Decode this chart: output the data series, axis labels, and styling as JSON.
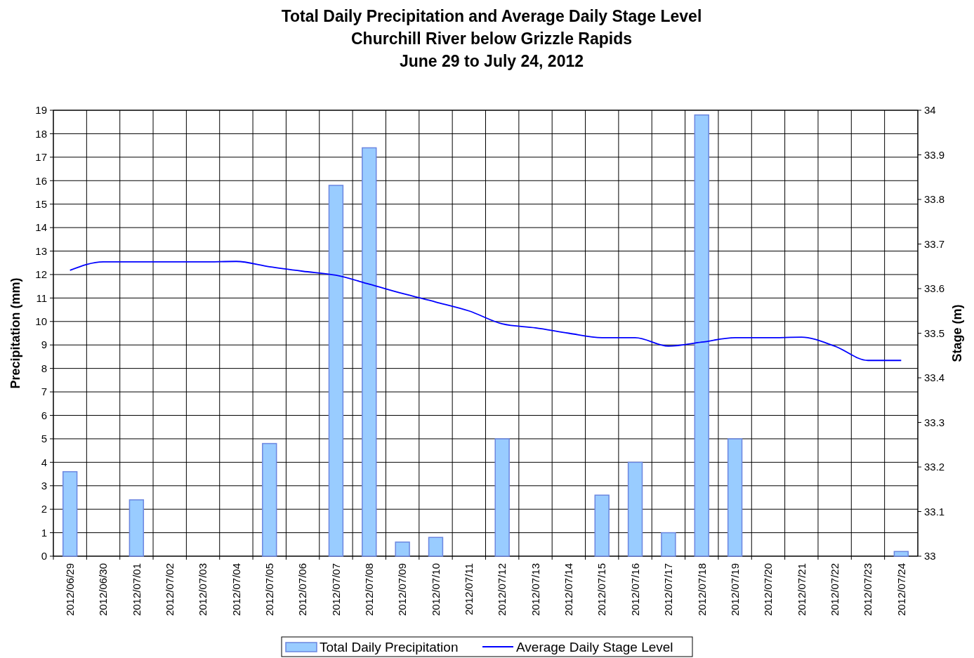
{
  "chart_data": {
    "type": "bar",
    "title": "Total Daily Precipitation and Average Daily Stage Level\nChurchill River below Grizzle Rapids\nJune 29 to July 24, 2012",
    "ylabel": "Precipitation (mm)",
    "y2label": "Stage (m)",
    "categories": [
      "2012/06/29",
      "2012/06/30",
      "2012/07/01",
      "2012/07/02",
      "2012/07/03",
      "2012/07/04",
      "2012/07/05",
      "2012/07/06",
      "2012/07/07",
      "2012/07/08",
      "2012/07/09",
      "2012/07/10",
      "2012/07/11",
      "2012/07/12",
      "2012/07/13",
      "2012/07/14",
      "2012/07/15",
      "2012/07/16",
      "2012/07/17",
      "2012/07/18",
      "2012/07/19",
      "2012/07/20",
      "2012/07/21",
      "2012/07/22",
      "2012/07/23",
      "2012/07/24"
    ],
    "series": [
      {
        "name": "Total Daily Precipitation",
        "color": "#99ccff",
        "values": [
          3.6,
          0,
          2.4,
          0,
          0,
          0,
          4.8,
          0,
          15.8,
          17.4,
          0.6,
          0.8,
          0,
          5.0,
          0,
          0,
          2.6,
          4.0,
          1.0,
          18.8,
          5.0,
          0,
          0,
          0,
          0,
          0.2
        ]
      },
      {
        "name": "Average Daily Stage Level",
        "type": "line",
        "axis": "y2",
        "color": "#0000ff",
        "values": [
          33.641,
          33.66,
          33.66,
          33.66,
          33.66,
          33.661,
          33.649,
          33.639,
          33.63,
          33.61,
          33.589,
          33.57,
          33.55,
          33.521,
          33.512,
          33.5,
          33.49,
          33.49,
          33.471,
          33.48,
          33.49,
          33.49,
          33.491,
          33.471,
          33.439,
          33.439
        ]
      }
    ],
    "ylim": [
      0,
      19
    ],
    "yticks": [
      0,
      1,
      2,
      3,
      4,
      5,
      6,
      7,
      8,
      9,
      10,
      11,
      12,
      13,
      14,
      15,
      16,
      17,
      18,
      19
    ],
    "y2lim": [
      33,
      34
    ],
    "y2ticks": [
      33,
      33.1,
      33.2,
      33.3,
      33.4,
      33.5,
      33.6,
      33.7,
      33.8,
      33.9,
      34
    ],
    "grid": true,
    "legend": "bottom",
    "marker": "none",
    "line_style": "solid"
  }
}
